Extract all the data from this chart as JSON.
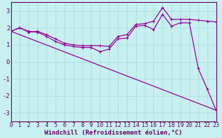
{
  "xlabel": "Windchill (Refroidissement éolien,°C)",
  "background_color": "#c8f0f0",
  "line_color": "#990099",
  "grid_color": "#aadddd",
  "xmin": 0,
  "xmax": 23,
  "ymin": -3.5,
  "ymax": 3.5,
  "ytick_min": -3,
  "ytick_max": 3,
  "line1_x": [
    0,
    1,
    2,
    3,
    4,
    5,
    6,
    7,
    8,
    9,
    10,
    11,
    12,
    13,
    14,
    15,
    16,
    17,
    18,
    19,
    20,
    21,
    22,
    23
  ],
  "line1_y": [
    1.8,
    2.0,
    1.8,
    1.75,
    1.5,
    1.2,
    1.0,
    0.9,
    0.85,
    0.85,
    0.6,
    0.75,
    1.35,
    1.4,
    2.1,
    2.15,
    1.9,
    2.8,
    2.1,
    2.3,
    2.3,
    -0.4,
    -1.6,
    -2.85
  ],
  "line2_x": [
    0,
    1,
    2,
    3,
    4,
    5,
    6,
    7,
    8,
    9,
    10,
    11,
    12,
    13,
    14,
    15,
    16,
    17,
    18,
    19,
    20,
    21,
    22,
    23
  ],
  "line2_y": [
    1.8,
    2.0,
    1.75,
    1.8,
    1.6,
    1.35,
    1.1,
    1.0,
    0.95,
    0.95,
    0.95,
    0.9,
    1.5,
    1.6,
    2.2,
    2.25,
    2.4,
    3.2,
    2.5,
    2.5,
    2.5,
    2.45,
    2.4,
    2.35
  ],
  "line3_x": [
    0,
    23
  ],
  "line3_y": [
    1.8,
    -2.85
  ],
  "xticks": [
    0,
    1,
    2,
    3,
    4,
    5,
    6,
    7,
    8,
    9,
    10,
    11,
    12,
    13,
    14,
    15,
    16,
    17,
    18,
    19,
    20,
    21,
    22,
    23
  ],
  "yticks": [
    -3,
    -2,
    -1,
    0,
    1,
    2,
    3
  ],
  "tick_fontsize": 6,
  "label_fontsize": 6.5
}
